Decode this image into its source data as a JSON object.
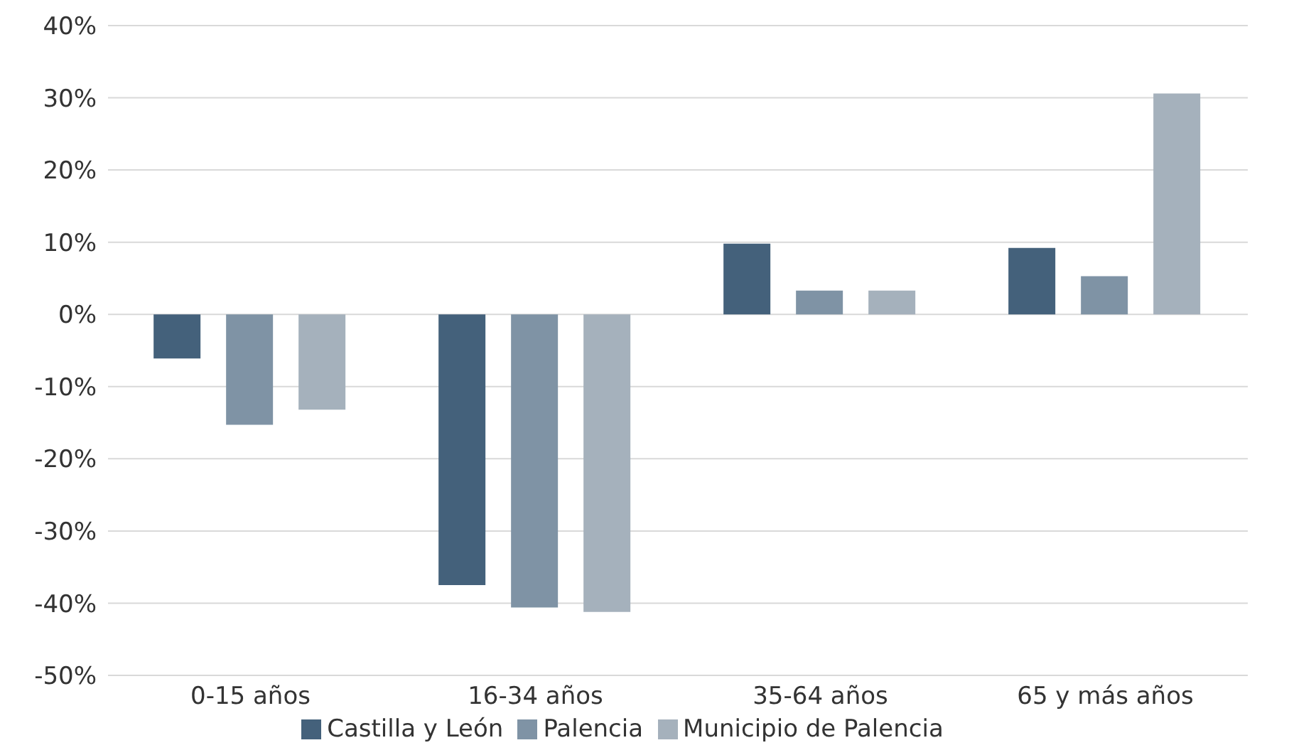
{
  "chart_data": {
    "type": "bar",
    "categories": [
      "0-15 años",
      "16-34 años",
      "35-64 años",
      "65 y más años"
    ],
    "series": [
      {
        "name": "Castilla y León",
        "color": "#44617b",
        "values": [
          -6.1,
          -37.5,
          9.8,
          9.2
        ]
      },
      {
        "name": "Palencia",
        "color": "#7f93a5",
        "values": [
          -15.3,
          -40.6,
          3.3,
          5.3
        ]
      },
      {
        "name": "Municipio de Palencia",
        "color": "#a5b1bc",
        "values": [
          -13.2,
          -41.2,
          3.3,
          30.6
        ]
      }
    ],
    "ylim": [
      -50,
      40
    ],
    "yticks": [
      {
        "value": -50,
        "label": "-50%"
      },
      {
        "value": -40,
        "label": "-40%"
      },
      {
        "value": -30,
        "label": "-30%"
      },
      {
        "value": -20,
        "label": "-20%"
      },
      {
        "value": -10,
        "label": "-10%"
      },
      {
        "value": 0,
        "label": "0%"
      },
      {
        "value": 10,
        "label": "10%"
      },
      {
        "value": 20,
        "label": "20%"
      },
      {
        "value": 30,
        "label": "30%"
      },
      {
        "value": 40,
        "label": "40%"
      }
    ],
    "grid": "y",
    "legend": "bottom"
  }
}
